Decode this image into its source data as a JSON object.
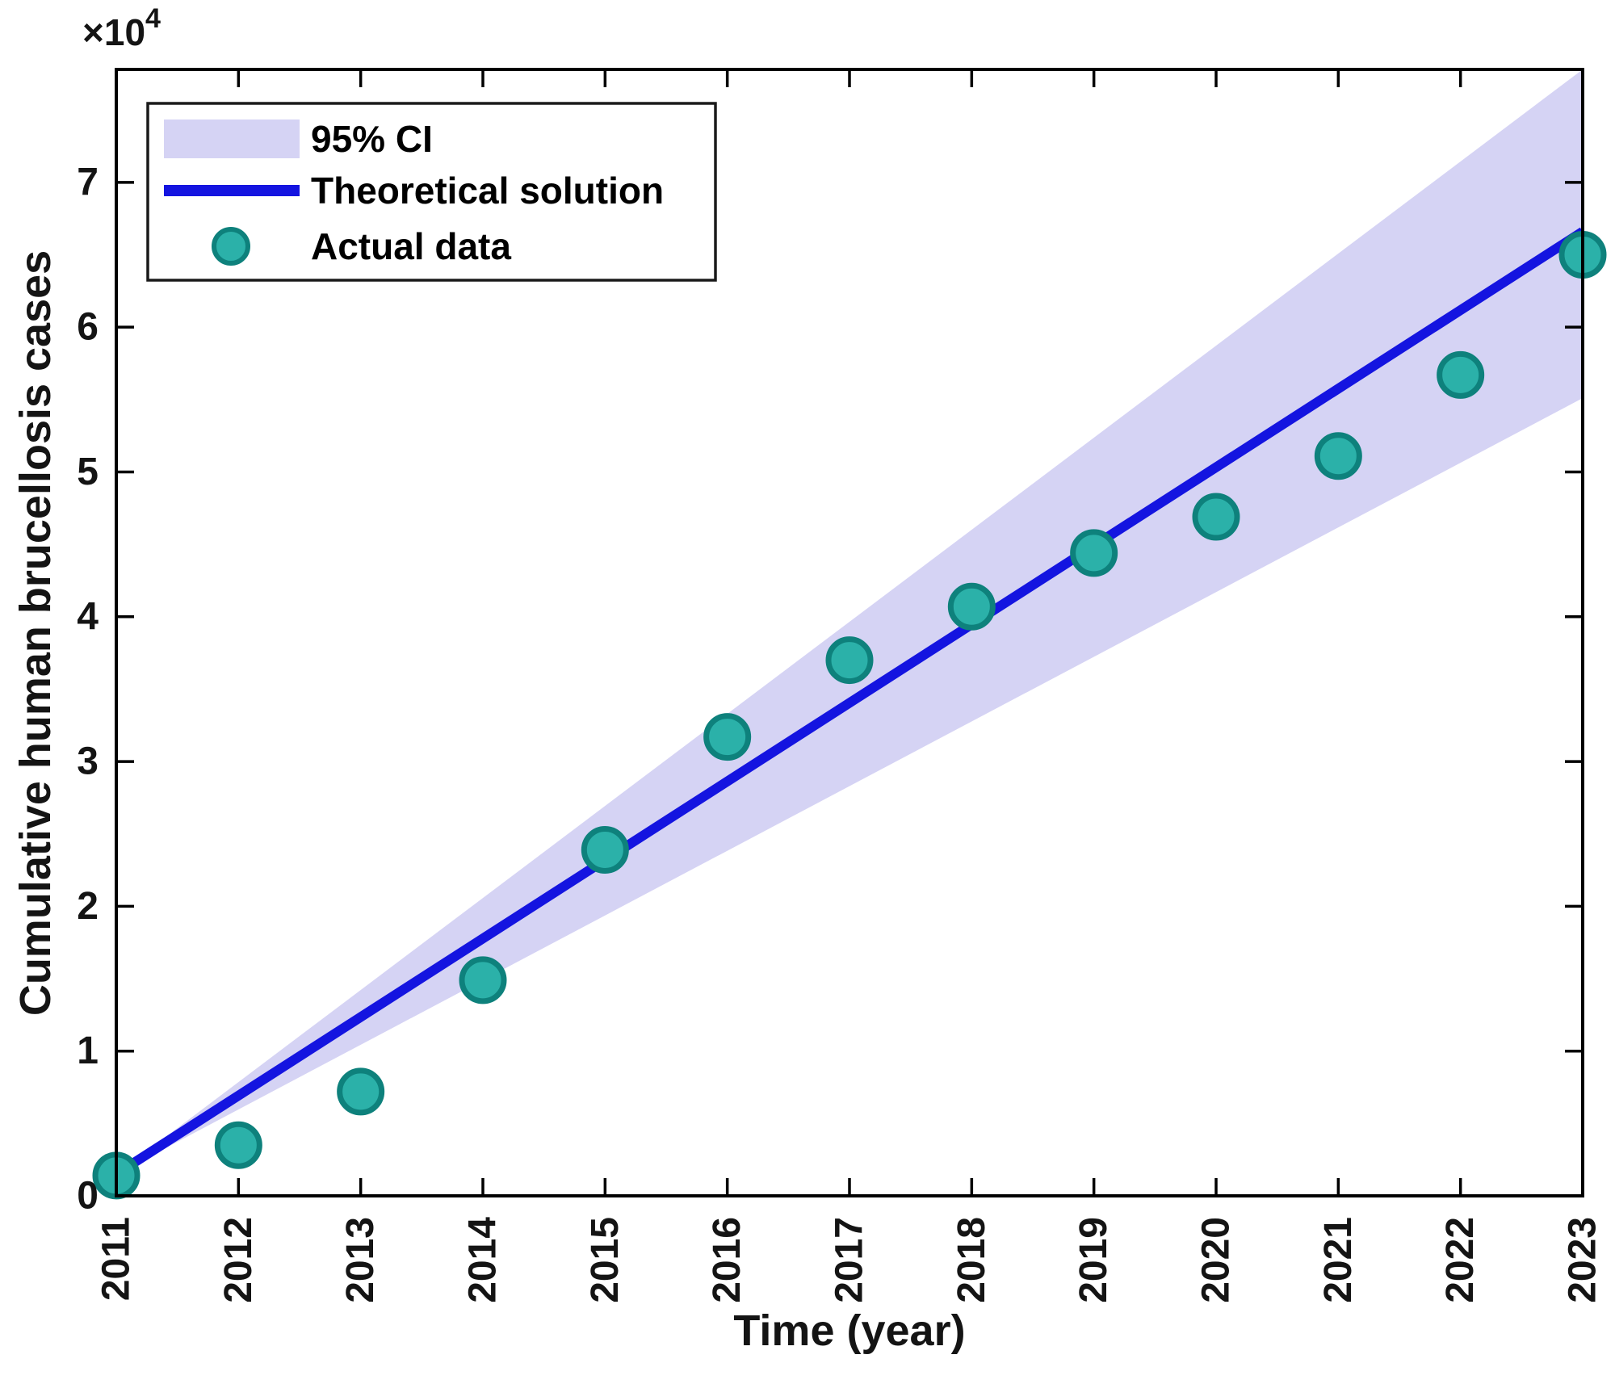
{
  "axis_exponent": {
    "base": "×10",
    "exp": "4"
  },
  "legend": {
    "position": "northwest",
    "items": [
      {
        "label": "95% CI",
        "swatch": "ci-band"
      },
      {
        "label": "Theoretical solution",
        "swatch": "line"
      },
      {
        "label": "Actual data",
        "swatch": "marker"
      }
    ]
  },
  "chart_data": {
    "type": "scatter",
    "title": "",
    "xlabel": "Time (year)",
    "ylabel": "Cumulative human brucellosis cases",
    "y_unit": "cases ×10^4",
    "x_ticks": [
      2011,
      2012,
      2013,
      2014,
      2015,
      2016,
      2017,
      2018,
      2019,
      2020,
      2021,
      2022,
      2023
    ],
    "y_ticks": [
      0,
      1,
      2,
      3,
      4,
      5,
      6,
      7
    ],
    "ylim": [
      0,
      7.78
    ],
    "grid": false,
    "series": [
      {
        "name": "Actual data",
        "type": "scatter",
        "x": [
          2011,
          2012,
          2013,
          2014,
          2015,
          2016,
          2017,
          2018,
          2019,
          2020,
          2021,
          2022,
          2023
        ],
        "values_x1e4": [
          0.14,
          0.35,
          0.72,
          1.49,
          2.39,
          3.17,
          3.7,
          4.07,
          4.44,
          4.69,
          5.11,
          5.67,
          6.5
        ]
      },
      {
        "name": "Theoretical solution",
        "type": "line",
        "x": [
          2011,
          2023
        ],
        "values_x1e4": [
          0.15,
          6.66
        ]
      },
      {
        "name": "95% CI",
        "type": "band",
        "x": [
          2011,
          2023
        ],
        "upper_x1e4": [
          0.15,
          7.78
        ],
        "lower_x1e4": [
          0.15,
          5.51
        ]
      }
    ],
    "colors": {
      "band": "#d5d3f4",
      "line": "#1414e0",
      "marker_fill": "#2bb1a9",
      "marker_edge": "#0e817c",
      "axis": "#000000",
      "text": "#141414"
    }
  }
}
